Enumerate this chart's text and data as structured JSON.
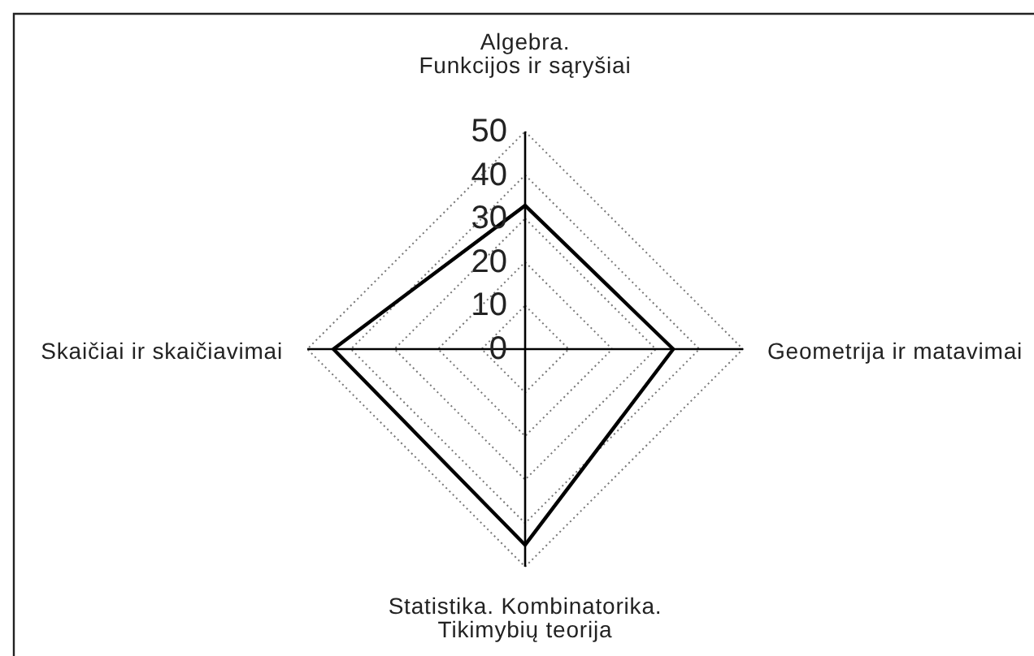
{
  "chart_data": {
    "type": "radar",
    "categories": [
      "Algebra.\nFunkcijos ir sąryšiai",
      "Geometrija ir matavimai",
      "Statistika. Kombinatorika.\nTikimybių teorija",
      "Skaičiai ir skaičiavimai"
    ],
    "series": [
      {
        "color": "#000000",
        "values": [
          33,
          34,
          45,
          44
        ]
      }
    ],
    "ylim": [
      0,
      50
    ],
    "yticks": [
      0,
      10,
      20,
      30,
      40,
      50
    ],
    "grid": true
  }
}
